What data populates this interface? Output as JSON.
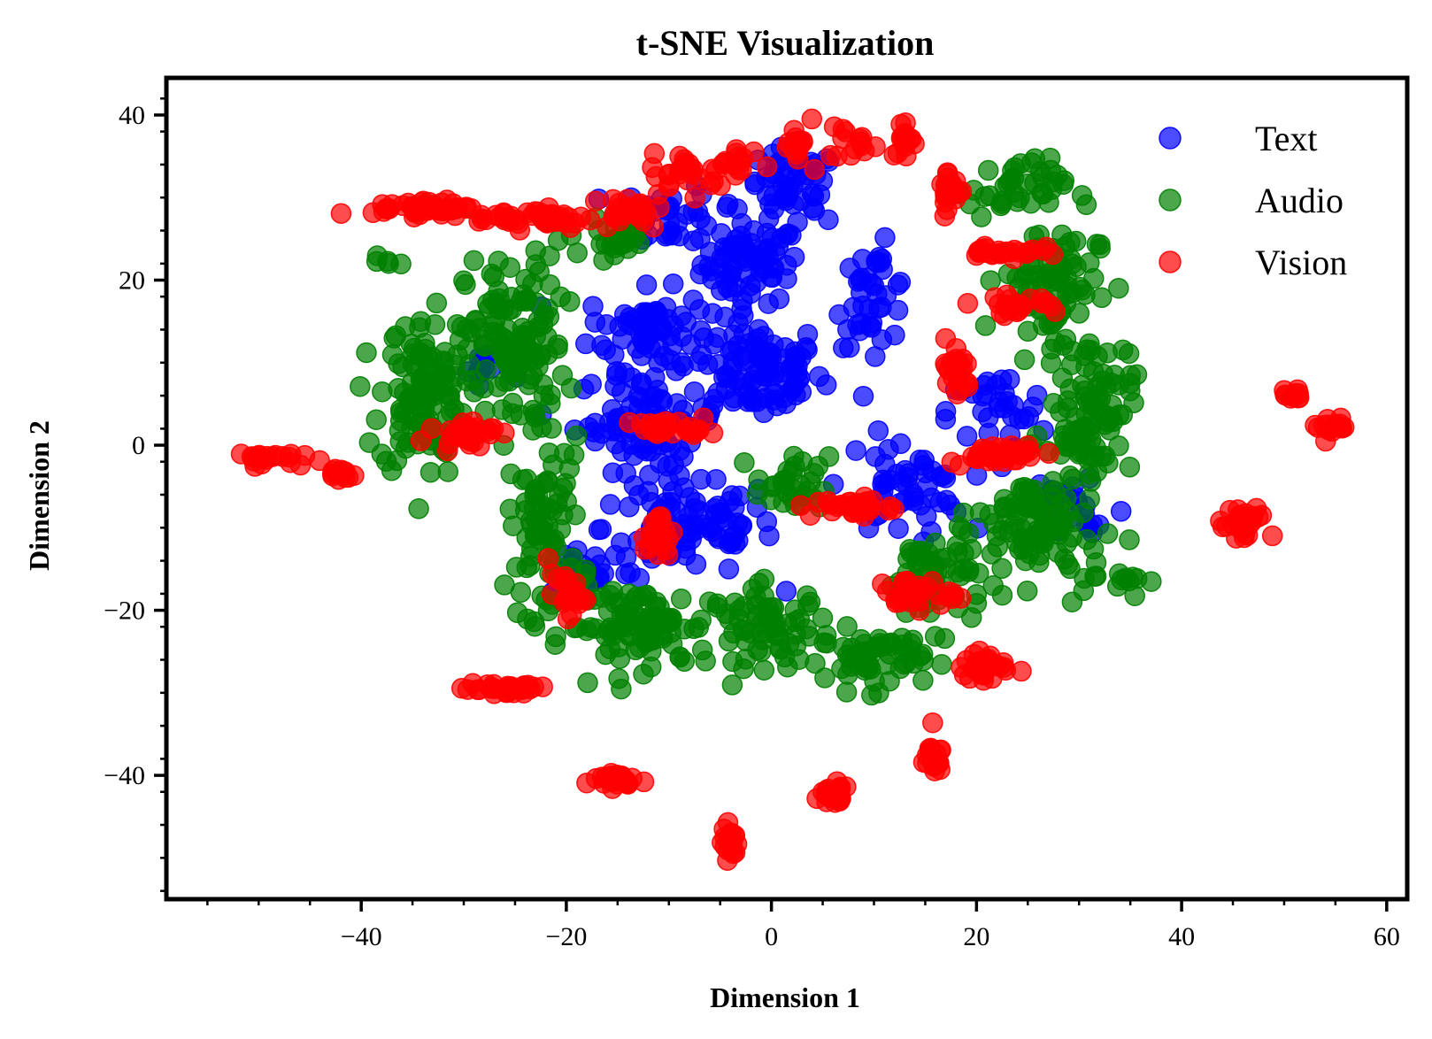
{
  "chart_data": {
    "type": "scatter",
    "title": "t-SNE Visualization",
    "xlabel": "Dimension 1",
    "ylabel": "Dimension 2",
    "xlim": [
      -59,
      62
    ],
    "ylim": [
      -55,
      44.5
    ],
    "xticks": [
      -40,
      -20,
      0,
      20,
      40,
      60
    ],
    "yticks": [
      -40,
      -20,
      0,
      20,
      40
    ],
    "xtick_labels": [
      "−40",
      "−20",
      "0",
      "20",
      "40",
      "60"
    ],
    "ytick_labels": [
      "−40",
      "−20",
      "0",
      "20",
      "40"
    ],
    "grid": false,
    "legend_position": "top-right",
    "series": [
      {
        "name": "Text",
        "color": "#0000ff",
        "clusters": [
          {
            "center": [
              -2,
              22
            ],
            "spread": [
              4,
              4
            ],
            "n": 70
          },
          {
            "center": [
              -1,
              9
            ],
            "spread": [
              5,
              5
            ],
            "n": 90
          },
          {
            "center": [
              -12,
              14
            ],
            "spread": [
              5,
              4
            ],
            "n": 70
          },
          {
            "center": [
              -12,
              3
            ],
            "spread": [
              6,
              5
            ],
            "n": 80
          },
          {
            "center": [
              -8,
              -10
            ],
            "spread": [
              7,
              5
            ],
            "n": 90
          },
          {
            "center": [
              2,
              31
            ],
            "spread": [
              4,
              4
            ],
            "n": 50
          },
          {
            "center": [
              -10,
              28
            ],
            "spread": [
              4,
              3
            ],
            "n": 35
          },
          {
            "center": [
              10,
              18
            ],
            "spread": [
              3,
              5
            ],
            "n": 40
          },
          {
            "center": [
              13,
              -5
            ],
            "spread": [
              5,
              5
            ],
            "n": 50
          },
          {
            "center": [
              22,
              4
            ],
            "spread": [
              4,
              4
            ],
            "n": 30
          },
          {
            "center": [
              -28,
              9
            ],
            "spread": [
              3,
              3
            ],
            "n": 12
          },
          {
            "center": [
              30,
              -8
            ],
            "spread": [
              4,
              5
            ],
            "n": 20
          },
          {
            "center": [
              -18,
              -15
            ],
            "spread": [
              4,
              3
            ],
            "n": 20
          }
        ]
      },
      {
        "name": "Audio",
        "color": "#008000",
        "clusters": [
          {
            "center": [
              -34,
              6
            ],
            "spread": [
              3.5,
              8
            ],
            "n": 120
          },
          {
            "center": [
              -25,
              12
            ],
            "spread": [
              4,
              9
            ],
            "n": 120
          },
          {
            "center": [
              -22,
              -10
            ],
            "spread": [
              3,
              9
            ],
            "n": 80
          },
          {
            "center": [
              -13,
              -22
            ],
            "spread": [
              6,
              4
            ],
            "n": 90
          },
          {
            "center": [
              0,
              -22
            ],
            "spread": [
              5,
              4
            ],
            "n": 70
          },
          {
            "center": [
              10,
              -26
            ],
            "spread": [
              4,
              3
            ],
            "n": 60
          },
          {
            "center": [
              16,
              -16
            ],
            "spread": [
              4,
              5
            ],
            "n": 60
          },
          {
            "center": [
              26,
              -10
            ],
            "spread": [
              5,
              6
            ],
            "n": 100
          },
          {
            "center": [
              31,
              5
            ],
            "spread": [
              3.5,
              7
            ],
            "n": 90
          },
          {
            "center": [
              27,
              20
            ],
            "spread": [
              4,
              6
            ],
            "n": 70
          },
          {
            "center": [
              24,
              31
            ],
            "spread": [
              4,
              3
            ],
            "n": 40
          },
          {
            "center": [
              2,
              -5
            ],
            "spread": [
              3,
              3
            ],
            "n": 30
          },
          {
            "center": [
              -38,
              22
            ],
            "spread": [
              1.5,
              1
            ],
            "n": 5
          },
          {
            "center": [
              -15,
              25
            ],
            "spread": [
              4,
              2
            ],
            "n": 25
          },
          {
            "center": [
              33,
              -16
            ],
            "spread": [
              3,
              2
            ],
            "n": 15
          }
        ]
      },
      {
        "name": "Vision",
        "color": "#ff0000",
        "clusters": [
          {
            "center": [
              -34,
              28.8
            ],
            "spread": [
              4,
              0.8
            ],
            "n": 40
          },
          {
            "center": [
              -23,
              27.5
            ],
            "spread": [
              5,
              1
            ],
            "n": 45
          },
          {
            "center": [
              -14,
              28.5
            ],
            "spread": [
              3,
              2
            ],
            "n": 25
          },
          {
            "center": [
              -8,
              33
            ],
            "spread": [
              3,
              2
            ],
            "n": 25
          },
          {
            "center": [
              -3,
              34
            ],
            "spread": [
              2,
              2
            ],
            "n": 15
          },
          {
            "center": [
              2.5,
              36
            ],
            "spread": [
              1,
              2
            ],
            "n": 15
          },
          {
            "center": [
              8,
              37
            ],
            "spread": [
              2,
              2
            ],
            "n": 15
          },
          {
            "center": [
              13,
              37
            ],
            "spread": [
              1,
              2
            ],
            "n": 15
          },
          {
            "center": [
              17.5,
              31
            ],
            "spread": [
              1,
              2.5
            ],
            "n": 20
          },
          {
            "center": [
              22.5,
              23.5
            ],
            "spread": [
              3,
              0.8
            ],
            "n": 25
          },
          {
            "center": [
              24,
              17
            ],
            "spread": [
              3.5,
              0.8
            ],
            "n": 25
          },
          {
            "center": [
              18,
              9
            ],
            "spread": [
              1.2,
              3
            ],
            "n": 20
          },
          {
            "center": [
              22,
              -1
            ],
            "spread": [
              4,
              1
            ],
            "n": 40
          },
          {
            "center": [
              -30,
              1.5
            ],
            "spread": [
              2.5,
              1.2
            ],
            "n": 30
          },
          {
            "center": [
              -9.5,
              2
            ],
            "spread": [
              3,
              0.8
            ],
            "n": 30
          },
          {
            "center": [
              -11,
              -11
            ],
            "spread": [
              1.2,
              2.5
            ],
            "n": 25
          },
          {
            "center": [
              8,
              -7.5
            ],
            "spread": [
              3.5,
              1
            ],
            "n": 30
          },
          {
            "center": [
              14,
              -18
            ],
            "spread": [
              3,
              1.5
            ],
            "n": 30
          },
          {
            "center": [
              -20,
              -18
            ],
            "spread": [
              1.5,
              2
            ],
            "n": 25
          },
          {
            "center": [
              21,
              -27
            ],
            "spread": [
              2,
              1.5
            ],
            "n": 25
          },
          {
            "center": [
              -26,
              -29.5
            ],
            "spread": [
              3.5,
              0.8
            ],
            "n": 30
          },
          {
            "center": [
              -50,
              -1.5
            ],
            "spread": [
              3,
              0.6
            ],
            "n": 20
          },
          {
            "center": [
              -42.5,
              -3.5
            ],
            "spread": [
              1.5,
              0.8
            ],
            "n": 12
          },
          {
            "center": [
              -15,
              -40.5
            ],
            "spread": [
              2.5,
              0.8
            ],
            "n": 25
          },
          {
            "center": [
              -4,
              -48
            ],
            "spread": [
              0.6,
              1.8
            ],
            "n": 20
          },
          {
            "center": [
              6,
              -42.5
            ],
            "spread": [
              1.5,
              1.5
            ],
            "n": 20
          },
          {
            "center": [
              15.5,
              -37.5
            ],
            "spread": [
              1,
              1.8
            ],
            "n": 20
          },
          {
            "center": [
              46,
              -10
            ],
            "spread": [
              2,
              2
            ],
            "n": 25
          },
          {
            "center": [
              51,
              6
            ],
            "spread": [
              0.8,
              0.5
            ],
            "n": 10
          },
          {
            "center": [
              54.5,
              2.5
            ],
            "spread": [
              1.5,
              1.5
            ],
            "n": 15
          }
        ]
      }
    ]
  }
}
